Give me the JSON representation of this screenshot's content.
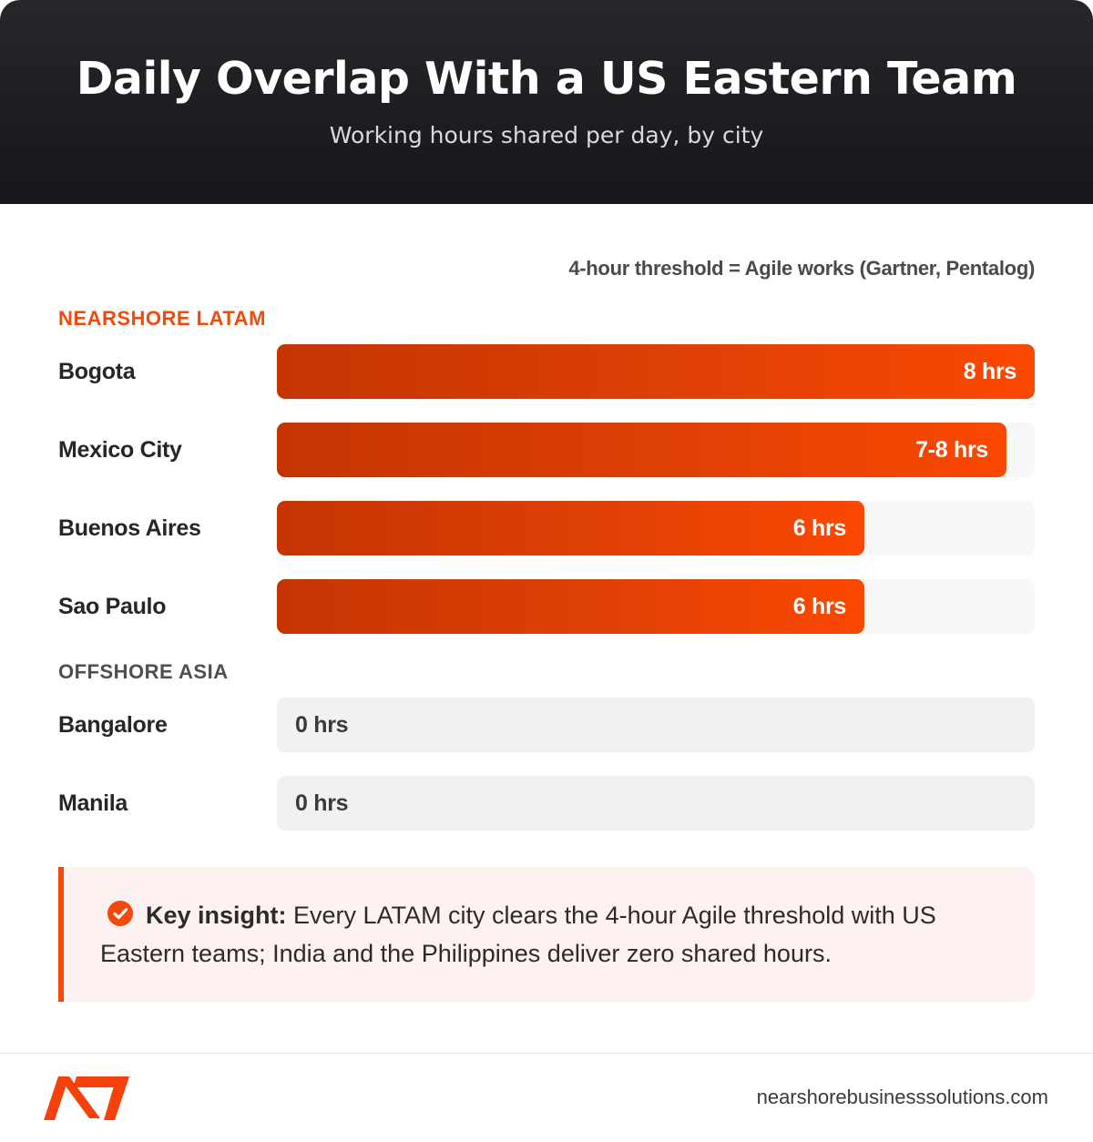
{
  "header": {
    "title": "Daily Overlap With a US Eastern Team",
    "subtitle": "Working hours shared per day, by city"
  },
  "threshold_note": "4-hour threshold = Agile works (Gartner, Pentalog)",
  "groups": {
    "latam": "NEARSHORE LATAM",
    "asia": "OFFSHORE ASIA"
  },
  "chart_data": {
    "type": "bar",
    "orientation": "horizontal",
    "title": "Daily Overlap With a US Eastern Team",
    "subtitle": "Working hours shared per day, by city",
    "xlim": [
      0,
      8
    ],
    "groups": [
      {
        "name": "NEARSHORE LATAM",
        "rows": [
          {
            "city": "Bogota",
            "value": 8,
            "label": "8 hrs"
          },
          {
            "city": "Mexico City",
            "value": 7.7,
            "label": "7-8 hrs"
          },
          {
            "city": "Buenos Aires",
            "value": 6.2,
            "label": "6 hrs"
          },
          {
            "city": "Sao Paulo",
            "value": 6.2,
            "label": "6 hrs"
          }
        ]
      },
      {
        "name": "OFFSHORE ASIA",
        "rows": [
          {
            "city": "Bangalore",
            "value": 0,
            "label": "0 hrs"
          },
          {
            "city": "Manila",
            "value": 0,
            "label": "0 hrs"
          }
        ]
      }
    ],
    "colors": {
      "bar": "#e24105",
      "bar_dark": "#c43503",
      "bar_light": "#fb4802",
      "accent": "#f24a0b"
    }
  },
  "insight": {
    "lead": "Key insight:",
    "body": "Every LATAM city clears the 4-hour Agile threshold with US Eastern teams; India and the Philippines deliver zero shared hours."
  },
  "footer": {
    "site": "nearshorebusinesssolutions.com",
    "logo_icon": "brand-logo-icon"
  }
}
